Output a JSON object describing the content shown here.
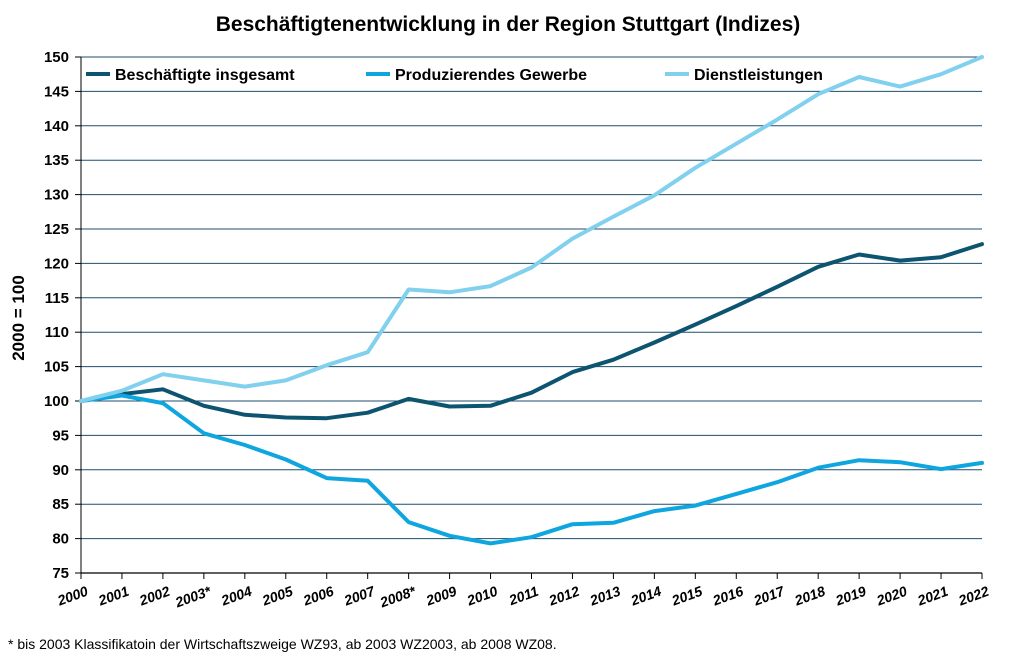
{
  "chart_data": {
    "type": "line",
    "title": "Beschäftigtenentwicklung in der Region Stuttgart (Indizes)",
    "xlabel": "",
    "ylabel": "2000 = 100",
    "ylim": [
      75,
      150
    ],
    "yticks": [
      75,
      80,
      85,
      90,
      95,
      100,
      105,
      110,
      115,
      120,
      125,
      130,
      135,
      140,
      145,
      150
    ],
    "grid": true,
    "legend_position": "top",
    "categories": [
      "2000",
      "2001",
      "2002",
      "2003*",
      "2004",
      "2005",
      "2006",
      "2007",
      "2008*",
      "2009",
      "2010",
      "2011",
      "2012",
      "2013",
      "2014",
      "2015",
      "2016",
      "2017",
      "2018",
      "2019",
      "2020",
      "2021",
      "2022"
    ],
    "series": [
      {
        "name": "Beschäftigte insgesamt",
        "color": "#0d5470",
        "values": [
          100,
          101,
          101.7,
          99.3,
          98,
          97.6,
          97.5,
          98.3,
          100.3,
          99.2,
          99.3,
          101.2,
          104.2,
          106,
          108.5,
          111.1,
          113.8,
          116.6,
          119.5,
          121.3,
          120.4,
          120.9,
          122.8
        ]
      },
      {
        "name": "Produzierendes Gewerbe",
        "color": "#0fa6df",
        "values": [
          100,
          100.8,
          99.7,
          95.3,
          93.6,
          91.5,
          88.8,
          88.4,
          82.4,
          80.4,
          79.3,
          80.2,
          82.1,
          82.3,
          84,
          84.8,
          86.5,
          88.2,
          90.3,
          91.4,
          91.1,
          90.1,
          91
        ]
      },
      {
        "name": "Dienstleistungen",
        "color": "#80d0ee",
        "values": [
          100,
          101.5,
          103.9,
          103,
          102.1,
          103,
          105.2,
          107.1,
          116.2,
          115.8,
          116.7,
          119.4,
          123.6,
          126.8,
          129.9,
          133.9,
          137.4,
          140.9,
          144.6,
          147.1,
          145.7,
          147.5,
          150
        ]
      }
    ]
  },
  "footnote": "* bis 2003 Klassifikatoin der Wirtschaftszweige WZ93, ab 2003 WZ2003, ab 2008 WZ08."
}
